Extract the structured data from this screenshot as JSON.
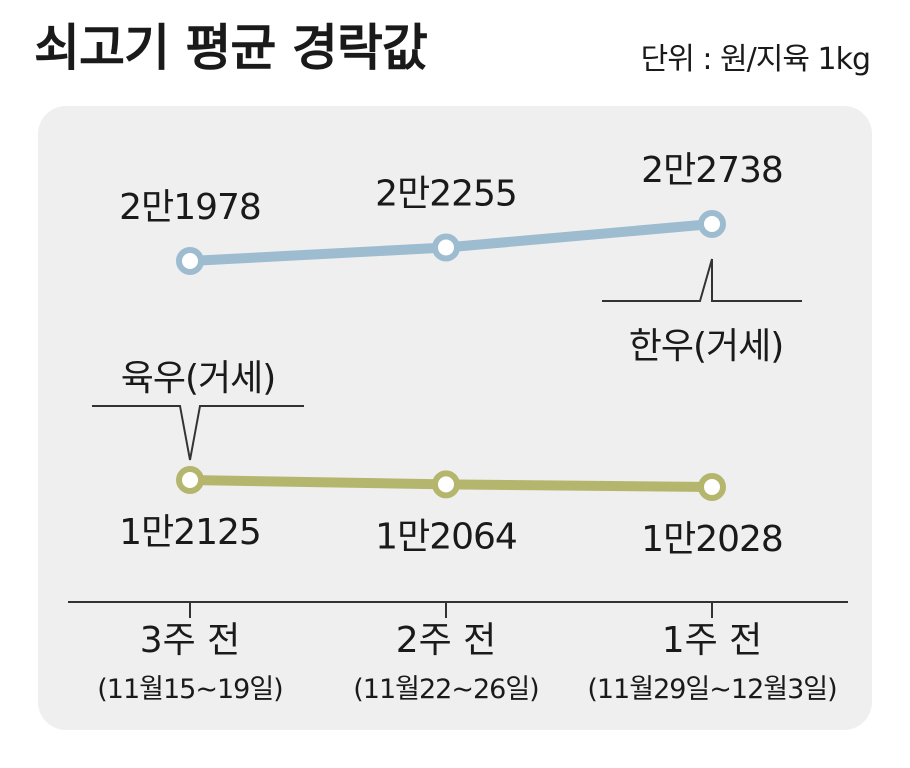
{
  "title": "쇠고기 평균 경락값",
  "unit": "단위 : 원/지육 1kg",
  "colors": {
    "hanwoo": "#9dbcd0",
    "yukwoo": "#b5b66e",
    "panel": "#efefef"
  },
  "chart_data": {
    "type": "line",
    "title": "쇠고기 평균 경락값",
    "unit": "단위 : 원/지육 1kg",
    "categories": [
      {
        "week": "3주 전",
        "range": "(11월15∼19일)"
      },
      {
        "week": "2주 전",
        "range": "(11월22∼26일)"
      },
      {
        "week": "1주 전",
        "range": "(11월29일∼12월3일)"
      }
    ],
    "series": [
      {
        "name": "한우(거세)",
        "values": [
          21978,
          22255,
          22738
        ],
        "labels": [
          "2만1978",
          "2만2255",
          "2만2738"
        ]
      },
      {
        "name": "육우(거세)",
        "values": [
          12125,
          12064,
          12028
        ],
        "labels": [
          "1만2125",
          "1만2064",
          "1만2028"
        ]
      }
    ],
    "grid": false
  }
}
